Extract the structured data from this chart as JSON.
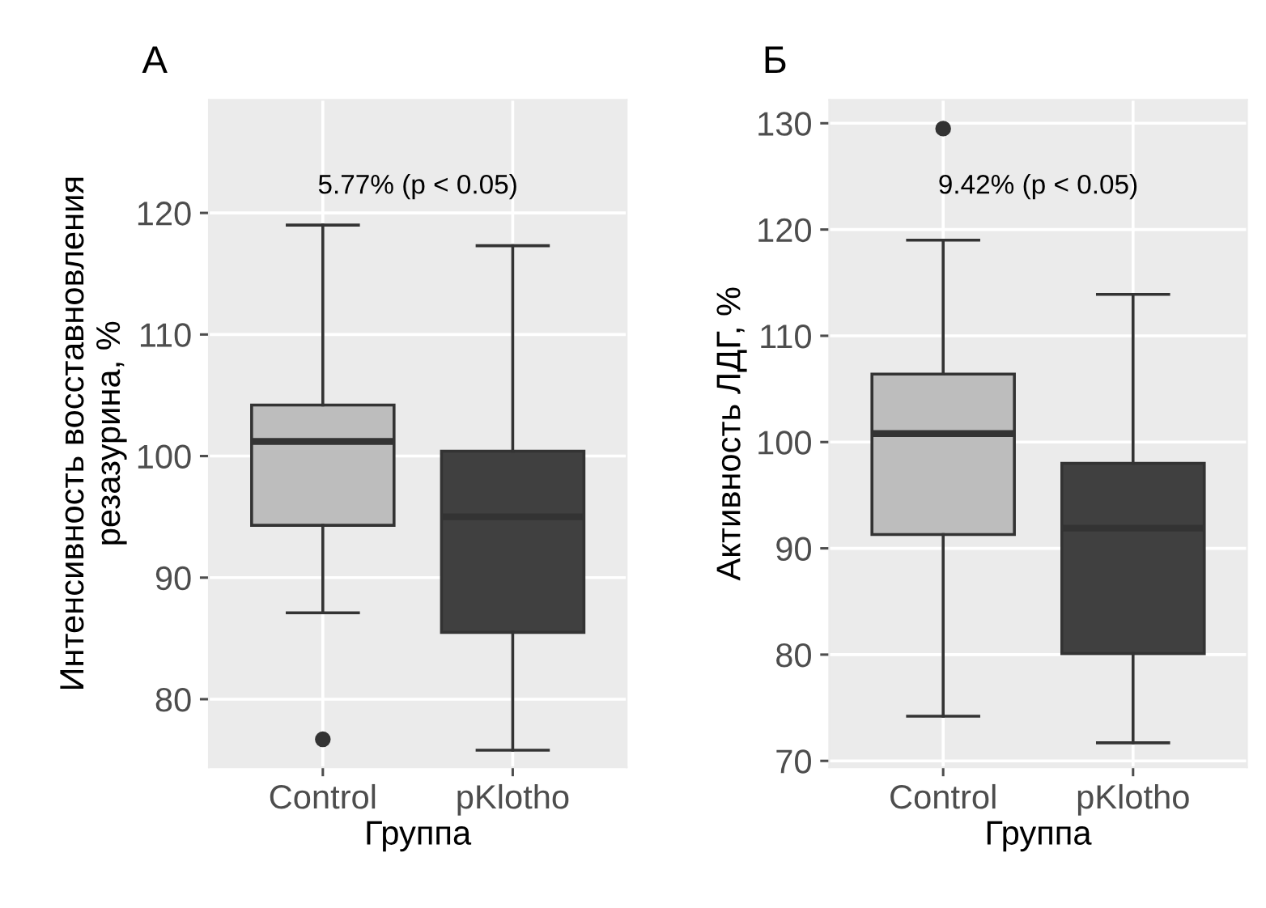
{
  "chart_data": [
    {
      "type": "box",
      "title": "А",
      "xlabel": "Группа",
      "ylabel": "Интенсивность восставновления\nрезазурина, %",
      "categories": [
        "Control",
        "pKlotho"
      ],
      "colors": [
        "#bdbdbd",
        "#404040"
      ],
      "boxes": [
        {
          "low": 87.1,
          "q1": 94.3,
          "median": 101.2,
          "q3": 104.2,
          "high": 119,
          "outliers": [
            76.7
          ]
        },
        {
          "low": 75.8,
          "q1": 85.5,
          "median": 95,
          "q3": 100.4,
          "high": 117.3
        }
      ],
      "ylim": [
        74.4,
        129.3
      ],
      "yticks": [
        80,
        90,
        100,
        110,
        120
      ],
      "grid": true,
      "legend": false,
      "annotations": [
        "5.77% (p < 0.05)"
      ]
    },
    {
      "type": "box",
      "title": "Б",
      "xlabel": "Группа",
      "ylabel": "Активность ЛДГ, %",
      "categories": [
        "Control",
        "pKlotho"
      ],
      "colors": [
        "#bdbdbd",
        "#404040"
      ],
      "boxes": [
        {
          "low": 74.2,
          "q1": 91.3,
          "median": 100.8,
          "q3": 106.4,
          "high": 119,
          "outliers": [
            129.5
          ]
        },
        {
          "low": 71.7,
          "q1": 80.1,
          "median": 91.9,
          "q3": 98,
          "high": 113.9
        }
      ],
      "ylim": [
        69.4,
        132.2
      ],
      "yticks": [
        70,
        80,
        90,
        100,
        110,
        120,
        130
      ],
      "grid": true,
      "legend": false,
      "annotations": [
        "9.42% (p < 0.05)"
      ]
    }
  ]
}
